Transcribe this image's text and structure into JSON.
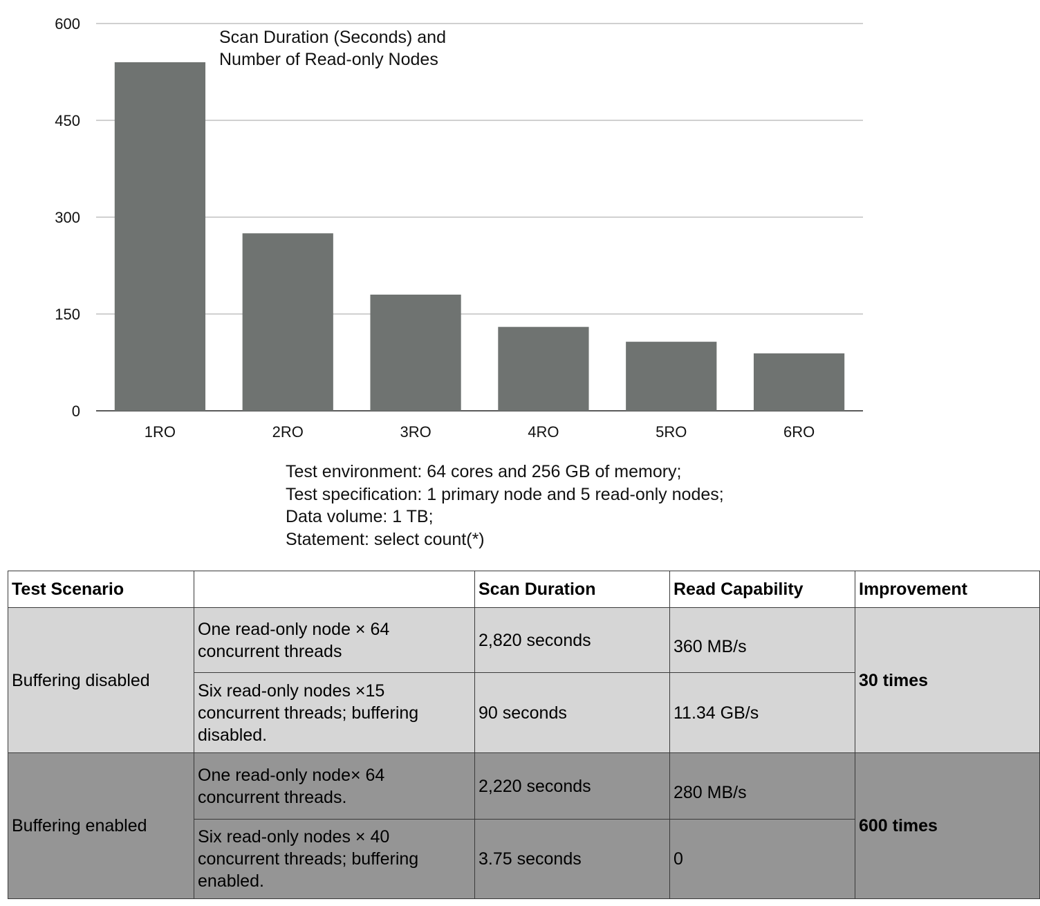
{
  "chart_data": {
    "type": "bar",
    "title": "Scan Duration (Seconds) and\nNumber of Read-only Nodes",
    "categories": [
      "1RO",
      "2RO",
      "3RO",
      "4RO",
      "5RO",
      "6RO"
    ],
    "values": [
      540,
      275,
      180,
      130,
      107,
      89
    ],
    "ylim": [
      0,
      600
    ],
    "yticks": [
      0,
      150,
      300,
      450,
      600
    ],
    "grid": true,
    "bar_color": "#6f7371"
  },
  "notes": [
    "Test environment: 64 cores and 256 GB of memory;",
    "Test specification: 1 primary node and 5 read-only nodes;",
    "Data volume: 1 TB;",
    "Statement: select count(*)"
  ],
  "table": {
    "headers": [
      "Test Scenario",
      "",
      "Scan Duration",
      "Read Capability",
      "Improvement"
    ],
    "groups": [
      {
        "scenario": "Buffering disabled",
        "improvement": "30 times",
        "rows": [
          {
            "config": "One read-only node × 64 concurrent threads",
            "duration": "2,820 seconds",
            "capability": "360 MB/s"
          },
          {
            "config": "Six read-only nodes ×15 concurrent threads; buffering disabled.",
            "duration": "90 seconds",
            "capability": "11.34 GB/s"
          }
        ]
      },
      {
        "scenario": "Buffering enabled",
        "improvement": "600 times",
        "rows": [
          {
            "config": "One read-only node× 64 concurrent threads.",
            "duration": "2,220 seconds",
            "capability": "280 MB/s"
          },
          {
            "config": "Six read-only nodes × 40 concurrent threads; buffering enabled.",
            "duration": "3.75 seconds",
            "capability": "0"
          }
        ]
      }
    ]
  }
}
